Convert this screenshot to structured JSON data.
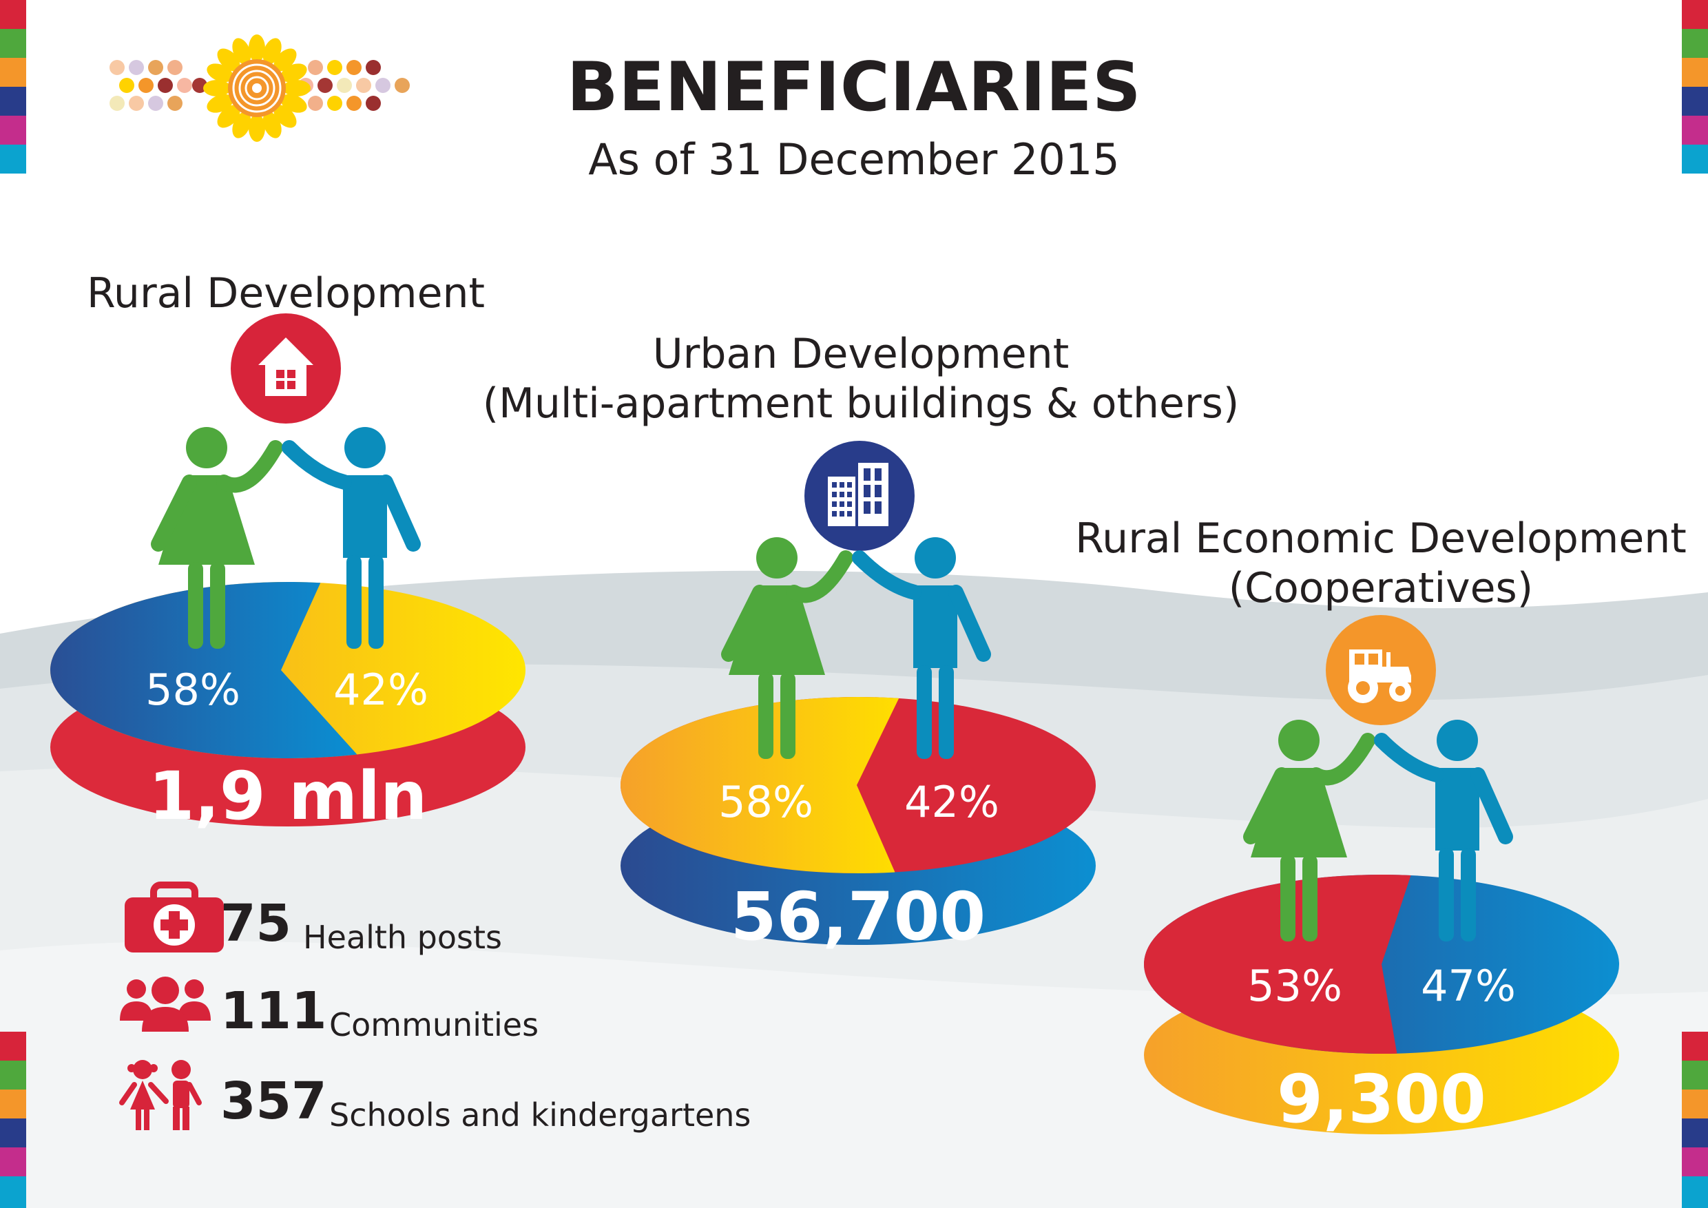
{
  "title": "BENEFICIARIES",
  "subtitle": "As of 31 December 2015",
  "colors": {
    "red": "#d7243a",
    "blue": "#21569a",
    "cyan": "#0b90cf",
    "yellow": "#ffd200",
    "orange": "#f4962a",
    "green": "#4fa83d",
    "man": "#0b8dbc",
    "navy": "#283c8a"
  },
  "chart_data": [
    {
      "type": "pie",
      "title": "Rural Development",
      "total_label": "1,9 mln",
      "icon": "house-icon",
      "slices": [
        {
          "label": "58%",
          "value": 58
        },
        {
          "label": "42%",
          "value": 42
        }
      ]
    },
    {
      "type": "pie",
      "title": "Urban Development\n(Multi-apartment buildings & others)",
      "total_label": "56,700",
      "icon": "buildings-icon",
      "slices": [
        {
          "label": "58%",
          "value": 58
        },
        {
          "label": "42%",
          "value": 42
        }
      ]
    },
    {
      "type": "pie",
      "title": "Rural Economic Development\n(Cooperatives)",
      "total_label": "9,300",
      "icon": "tractor-icon",
      "slices": [
        {
          "label": "53%",
          "value": 53
        },
        {
          "label": "47%",
          "value": 47
        }
      ]
    }
  ],
  "stats": [
    {
      "icon": "first-aid-kit-icon",
      "number": "75",
      "label": "Health posts"
    },
    {
      "icon": "people-group-icon",
      "number": "111",
      "label": "Communities"
    },
    {
      "icon": "children-icon",
      "number": "357",
      "label": "Schools and kindergartens"
    }
  ]
}
